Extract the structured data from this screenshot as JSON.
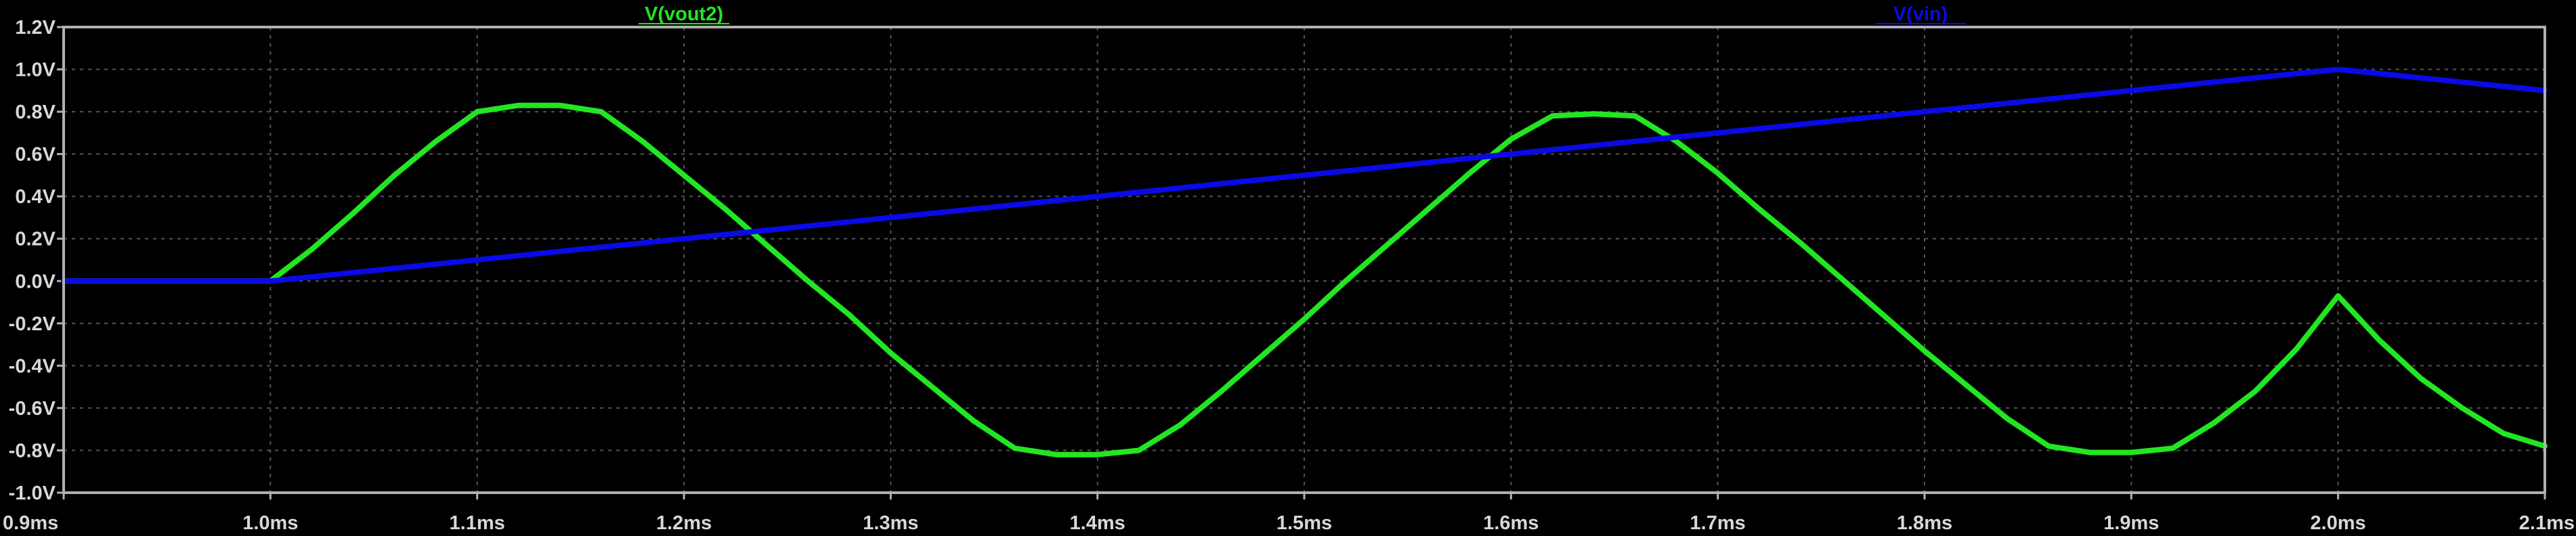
{
  "chart_data": {
    "type": "line",
    "title": "",
    "xlabel": "",
    "ylabel": "",
    "xlim": [
      0.9,
      2.1
    ],
    "ylim": [
      -1.0,
      1.2
    ],
    "x_unit": "ms",
    "y_unit": "V",
    "grid": true,
    "x_ticks": [
      "0.9ms",
      "1.0ms",
      "1.1ms",
      "1.2ms",
      "1.3ms",
      "1.4ms",
      "1.5ms",
      "1.6ms",
      "1.7ms",
      "1.8ms",
      "1.9ms",
      "2.0ms",
      "2.1ms"
    ],
    "x_tick_values": [
      0.9,
      1.0,
      1.1,
      1.2,
      1.3,
      1.4,
      1.5,
      1.6,
      1.7,
      1.8,
      1.9,
      2.0,
      2.1
    ],
    "y_ticks": [
      "1.2V",
      "1.0V",
      "0.8V",
      "0.6V",
      "0.4V",
      "0.2V",
      "0.0V",
      "-0.2V",
      "-0.4V",
      "-0.6V",
      "-0.8V",
      "-1.0V"
    ],
    "y_tick_values": [
      1.2,
      1.0,
      0.8,
      0.6,
      0.4,
      0.2,
      0.0,
      -0.2,
      -0.4,
      -0.6,
      -0.8,
      -1.0
    ],
    "series": [
      {
        "name": "V(vout2)",
        "color": "#22e622",
        "x": [
          0.9,
          1.0,
          1.02,
          1.04,
          1.06,
          1.08,
          1.1,
          1.12,
          1.14,
          1.16,
          1.18,
          1.2,
          1.22,
          1.24,
          1.26,
          1.28,
          1.3,
          1.32,
          1.34,
          1.36,
          1.38,
          1.4,
          1.42,
          1.44,
          1.46,
          1.48,
          1.5,
          1.52,
          1.54,
          1.56,
          1.58,
          1.6,
          1.62,
          1.64,
          1.66,
          1.68,
          1.7,
          1.72,
          1.74,
          1.76,
          1.78,
          1.8,
          1.82,
          1.84,
          1.86,
          1.88,
          1.9,
          1.92,
          1.94,
          1.96,
          1.98,
          2.0,
          2.02,
          2.04,
          2.06,
          2.08,
          2.1
        ],
        "y": [
          0.0,
          0.0,
          0.15,
          0.32,
          0.5,
          0.66,
          0.8,
          0.83,
          0.83,
          0.8,
          0.66,
          0.5,
          0.34,
          0.17,
          0.0,
          -0.16,
          -0.34,
          -0.5,
          -0.66,
          -0.79,
          -0.82,
          -0.82,
          -0.8,
          -0.68,
          -0.52,
          -0.35,
          -0.18,
          0.0,
          0.17,
          0.34,
          0.51,
          0.67,
          0.78,
          0.79,
          0.78,
          0.66,
          0.51,
          0.34,
          0.18,
          0.01,
          -0.16,
          -0.33,
          -0.49,
          -0.65,
          -0.78,
          -0.81,
          -0.81,
          -0.79,
          -0.67,
          -0.52,
          -0.32,
          -0.07,
          -0.28,
          -0.46,
          -0.6,
          -0.72,
          -0.78
        ]
      },
      {
        "name": "V(vin)",
        "color": "#0a0ae6",
        "x": [
          0.9,
          1.0,
          2.0,
          2.1
        ],
        "y": [
          0.0,
          0.0,
          1.0,
          0.9
        ]
      }
    ]
  }
}
